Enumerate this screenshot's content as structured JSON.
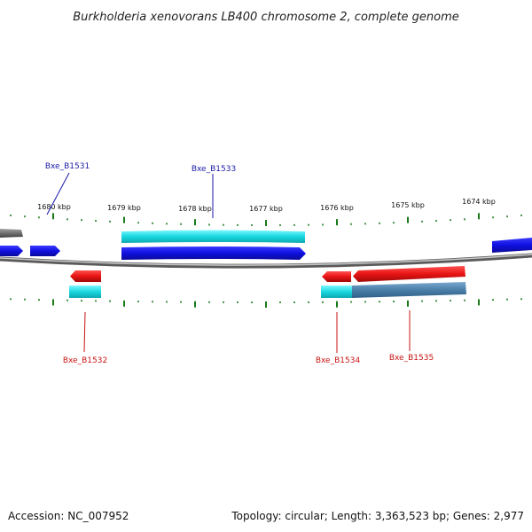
{
  "title": "Burkholderia xenovorans LB400 chromosome 2, complete genome",
  "footer": {
    "accession": "Accession: NC_007952",
    "summary": "Topology: circular; Length: 3,363,523 bp; Genes: 2,977"
  },
  "colors": {
    "backbone": "#808080",
    "top_strand": "#1414e8",
    "top_strand_light": "#19d8e0",
    "bottom_strand": "#e81414",
    "bottom_strand_light": "#19d8e0",
    "steel": "#4a7fa8",
    "neighbor_gray": "#707070",
    "tick": "#1a7a1a",
    "label_top": "#1a1aa8",
    "label_bottom": "#c81414"
  },
  "scale": {
    "unit": "kbp",
    "labels": [
      "1680 kbp",
      "1679 kbp",
      "1678 kbp",
      "1677 kbp",
      "1676 kbp",
      "1675 kbp",
      "1674 kbp"
    ]
  },
  "genes": [
    {
      "id": "Bxe_B1531",
      "strand": "+",
      "label": "Bxe_B1531"
    },
    {
      "id": "Bxe_B1532",
      "strand": "-",
      "label": "Bxe_B1532"
    },
    {
      "id": "Bxe_B1533",
      "strand": "+",
      "label": "Bxe_B1533"
    },
    {
      "id": "Bxe_B1534",
      "strand": "-",
      "label": "Bxe_B1534"
    },
    {
      "id": "Bxe_B1535",
      "strand": "-",
      "label": "Bxe_B1535"
    }
  ]
}
